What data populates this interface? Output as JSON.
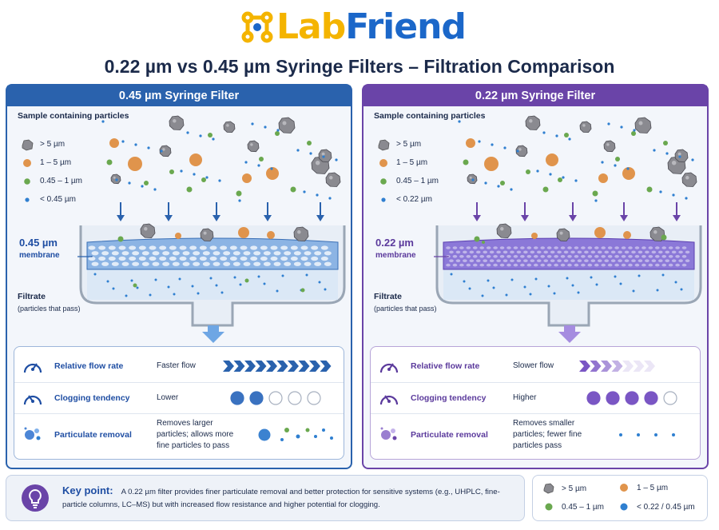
{
  "brand": {
    "name_part1": "Lab",
    "name_part2": "Friend"
  },
  "title": "0.22 µm vs 0.45 µm Syringe Filters – Filtration Comparison",
  "panels": {
    "left": {
      "header": "0.45 µm Syringe Filter",
      "sample_label": "Sample containing particles",
      "legend": [
        "> 5 µm",
        "1 – 5 µm",
        "0.45 – 1 µm",
        "< 0.45 µm"
      ],
      "membrane_size": "0.45 µm",
      "membrane_word": "membrane",
      "filtrate": "Filtrate",
      "filtrate_sub": "(particles that pass)",
      "metrics": {
        "flow": {
          "name": "Relative flow rate",
          "value": "Faster flow",
          "chevrons": 10
        },
        "clog": {
          "name": "Clogging tendency",
          "value": "Lower",
          "filled": 2,
          "total": 5
        },
        "removal": {
          "name": "Particulate removal",
          "value": "Removes larger particles; allows more fine particles to pass"
        }
      }
    },
    "right": {
      "header": "0.22 µm Syringe Filter",
      "sample_label": "Sample containing particles",
      "legend": [
        "> 5 µm",
        "1 – 5 µm",
        "0.45 – 1 µm",
        "< 0.22 µm"
      ],
      "membrane_size": "0.22 µm",
      "membrane_word": "membrane",
      "filtrate": "Filtrate",
      "filtrate_sub": "(particles that pass)",
      "metrics": {
        "flow": {
          "name": "Relative flow rate",
          "value": "Slower flow",
          "chevrons": 4
        },
        "clog": {
          "name": "Clogging tendency",
          "value": "Higher",
          "filled": 4,
          "total": 5
        },
        "removal": {
          "name": "Particulate removal",
          "value": "Removes smaller particles; fewer fine particles pass"
        }
      }
    }
  },
  "key_point": {
    "label": "Key point:",
    "text": "A 0.22 µm filter provides finer particulate removal and better protection for sensitive systems (e.g., UHPLC, fine-particle columns, LC–MS) but with increased flow resistance and higher potential for clogging."
  },
  "bottom_legend": [
    "> 5 µm",
    "1 – 5 µm",
    "0.45 – 1 µm",
    "< 0.22 / 0.45 µm"
  ],
  "colors": {
    "blue": "#2a62ad",
    "purple": "#6a44a8",
    "rock": "#8a8a90",
    "orange": "#e0944c",
    "green": "#6aa84f",
    "small_blue": "#2f7fd0",
    "logo_yellow": "#f4b400",
    "logo_blue": "#1b67c9"
  },
  "icons": [
    "logo-molecule-icon",
    "down-arrow-icon",
    "gauge-icon",
    "particles-icon",
    "lightbulb-icon",
    "chevron-icon"
  ]
}
